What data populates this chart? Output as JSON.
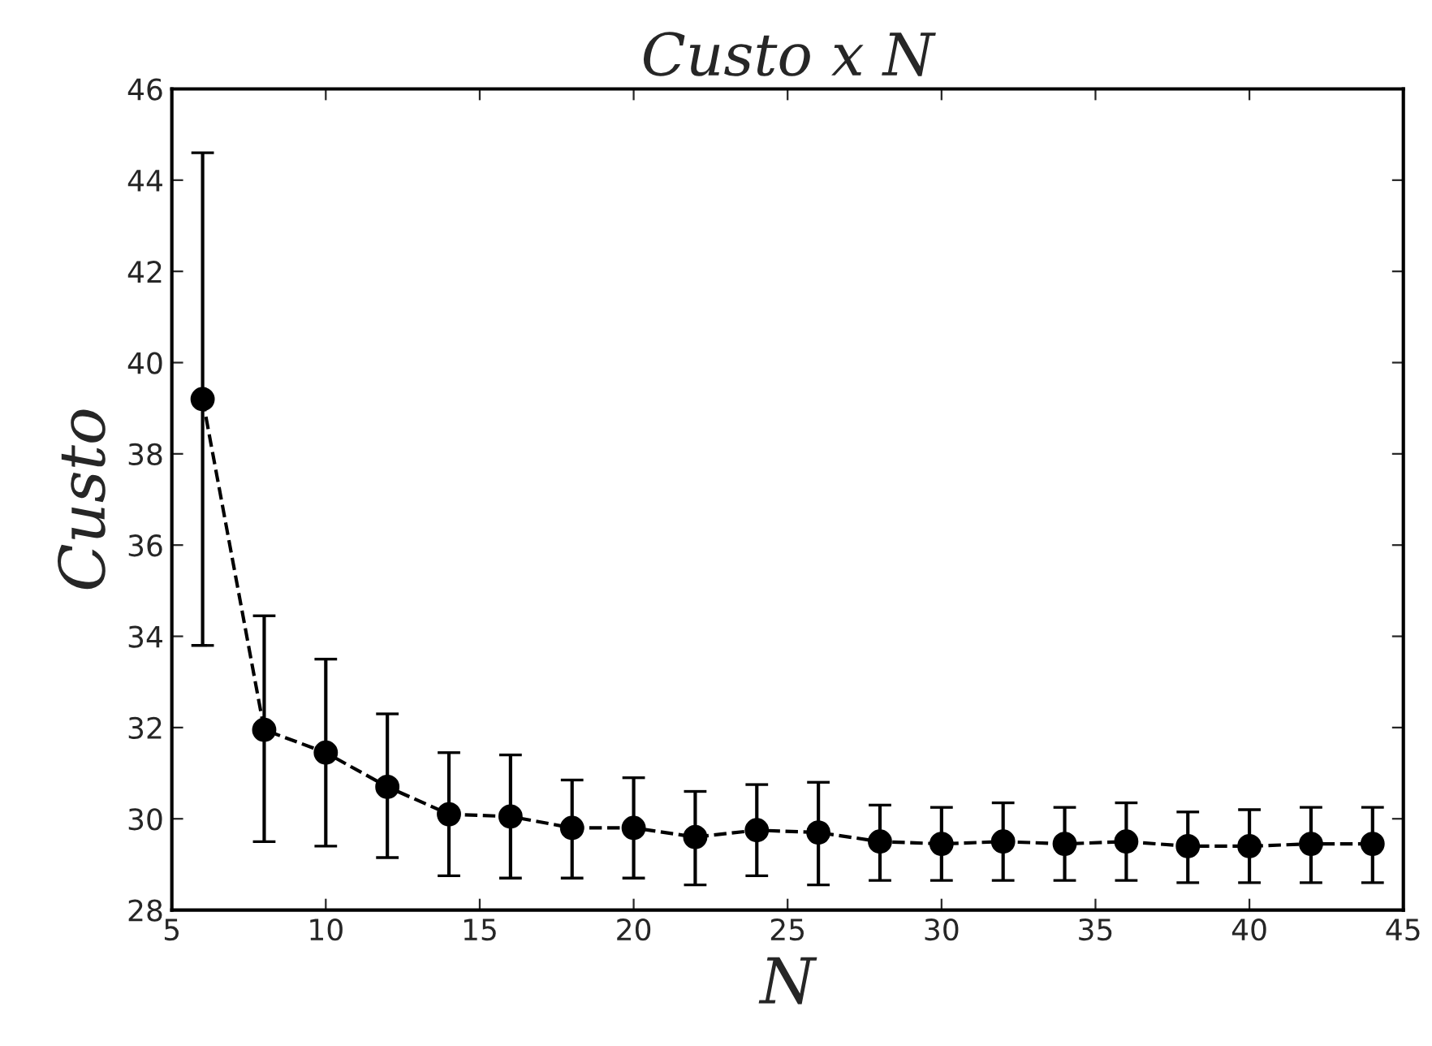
{
  "chart_data": {
    "type": "line",
    "title": "Custo x N",
    "xlabel": "N",
    "ylabel": "Custo",
    "x": [
      6,
      8,
      10,
      12,
      14,
      16,
      18,
      20,
      22,
      24,
      26,
      28,
      30,
      32,
      34,
      36,
      38,
      40,
      42,
      44
    ],
    "series": [
      {
        "color": "#000000",
        "values": [
          39.2,
          31.95,
          31.45,
          30.7,
          30.1,
          30.05,
          29.8,
          29.8,
          29.6,
          29.75,
          29.7,
          29.5,
          29.45,
          29.5,
          29.45,
          29.5,
          29.4,
          29.4,
          29.45,
          29.45
        ],
        "errors": [
          [
            33.8,
            44.6
          ],
          [
            29.5,
            34.45
          ],
          [
            29.4,
            33.5
          ],
          [
            29.15,
            32.3
          ],
          [
            28.75,
            31.45
          ],
          [
            28.7,
            31.4
          ],
          [
            28.7,
            30.85
          ],
          [
            28.7,
            30.9
          ],
          [
            28.55,
            30.6
          ],
          [
            28.75,
            30.75
          ],
          [
            28.55,
            30.8
          ],
          [
            28.65,
            30.3
          ],
          [
            28.65,
            30.25
          ],
          [
            28.65,
            30.35
          ],
          [
            28.65,
            30.25
          ],
          [
            28.65,
            30.35
          ],
          [
            28.6,
            30.15
          ],
          [
            28.6,
            30.2
          ],
          [
            28.6,
            30.25
          ],
          [
            28.6,
            30.25
          ]
        ]
      }
    ],
    "xlim": [
      5,
      45
    ],
    "xticks": [
      5,
      10,
      15,
      20,
      25,
      30,
      35,
      40,
      45
    ],
    "ylim": [
      28,
      46
    ],
    "yticks": [
      28,
      30,
      32,
      34,
      36,
      38,
      40,
      42,
      44,
      46
    ],
    "marker": "circle",
    "line_style": "dashed",
    "grid": false,
    "legend": false
  }
}
